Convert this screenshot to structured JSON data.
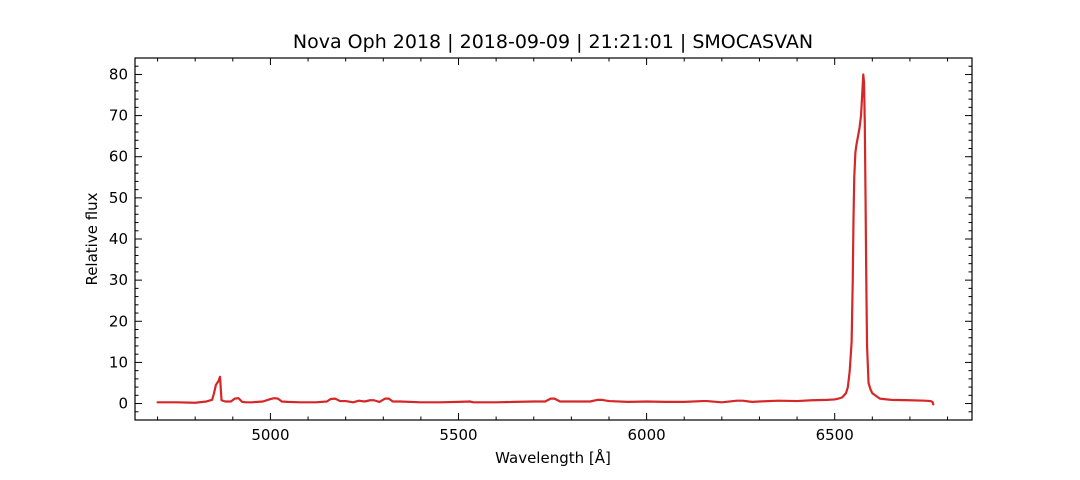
{
  "chart_data": {
    "type": "line",
    "title": "Nova Oph 2018 | 2018-09-09 | 21:21:01 | SMOCASVAN",
    "xlabel": "Wavelength [Å]",
    "ylabel": "Relative flux",
    "xlim": [
      4640,
      6865
    ],
    "ylim": [
      -4,
      84
    ],
    "xticks": [
      5000,
      5500,
      6000,
      6500
    ],
    "xtick_labels": [
      "5000",
      "5500",
      "6000",
      "6500"
    ],
    "xminor_step": 100,
    "yticks": [
      0,
      10,
      20,
      30,
      40,
      50,
      60,
      70,
      80
    ],
    "ytick_labels": [
      "0",
      "10",
      "20",
      "30",
      "40",
      "50",
      "60",
      "70",
      "80"
    ],
    "yminor_step": 2,
    "grid": false,
    "line_color": "#d62728",
    "series": [
      {
        "x": [
          4700,
          4750,
          4800,
          4830,
          4845,
          4850,
          4855,
          4862,
          4866,
          4870,
          4880,
          4895,
          4905,
          4915,
          4925,
          4935,
          4950,
          4980,
          5000,
          5010,
          5020,
          5030,
          5045,
          5080,
          5120,
          5150,
          5160,
          5172,
          5185,
          5200,
          5220,
          5235,
          5250,
          5265,
          5275,
          5290,
          5305,
          5315,
          5325,
          5345,
          5400,
          5450,
          5500,
          5530,
          5540,
          5560,
          5600,
          5650,
          5700,
          5730,
          5745,
          5755,
          5770,
          5800,
          5850,
          5870,
          5880,
          5900,
          5950,
          6000,
          6050,
          6100,
          6150,
          6160,
          6200,
          6240,
          6255,
          6280,
          6300,
          6350,
          6400,
          6440,
          6480,
          6500,
          6510,
          6520,
          6530,
          6535,
          6540,
          6545,
          6548,
          6550,
          6552,
          6555,
          6558,
          6562,
          6566,
          6570,
          6573,
          6576,
          6578,
          6580,
          6582,
          6584,
          6586,
          6590,
          6595,
          6600,
          6620,
          6650,
          6700,
          6740,
          6755,
          6760,
          6762
        ],
        "y": [
          0.3,
          0.3,
          0.2,
          0.5,
          0.9,
          2.5,
          4.5,
          5.5,
          6.5,
          0.8,
          0.5,
          0.5,
          1.2,
          1.3,
          0.4,
          0.3,
          0.3,
          0.5,
          1.1,
          1.3,
          1.2,
          0.5,
          0.4,
          0.3,
          0.3,
          0.5,
          1.1,
          1.2,
          0.6,
          0.6,
          0.3,
          0.7,
          0.5,
          0.8,
          0.8,
          0.4,
          1.2,
          1.2,
          0.5,
          0.5,
          0.3,
          0.3,
          0.4,
          0.5,
          0.3,
          0.3,
          0.3,
          0.4,
          0.5,
          0.5,
          1.2,
          1.2,
          0.5,
          0.5,
          0.5,
          0.9,
          0.9,
          0.6,
          0.4,
          0.5,
          0.4,
          0.4,
          0.6,
          0.6,
          0.3,
          0.7,
          0.7,
          0.4,
          0.5,
          0.7,
          0.6,
          0.8,
          0.9,
          1.0,
          1.2,
          1.5,
          2.5,
          4.0,
          8.0,
          15.0,
          30.0,
          45.0,
          55.0,
          61.0,
          63.0,
          65.0,
          67.0,
          70.0,
          75.0,
          80.0,
          78.0,
          68.0,
          50.0,
          30.0,
          14.0,
          5.0,
          3.5,
          2.5,
          1.2,
          0.9,
          0.8,
          0.7,
          0.6,
          0.4,
          -0.2
        ]
      }
    ]
  }
}
